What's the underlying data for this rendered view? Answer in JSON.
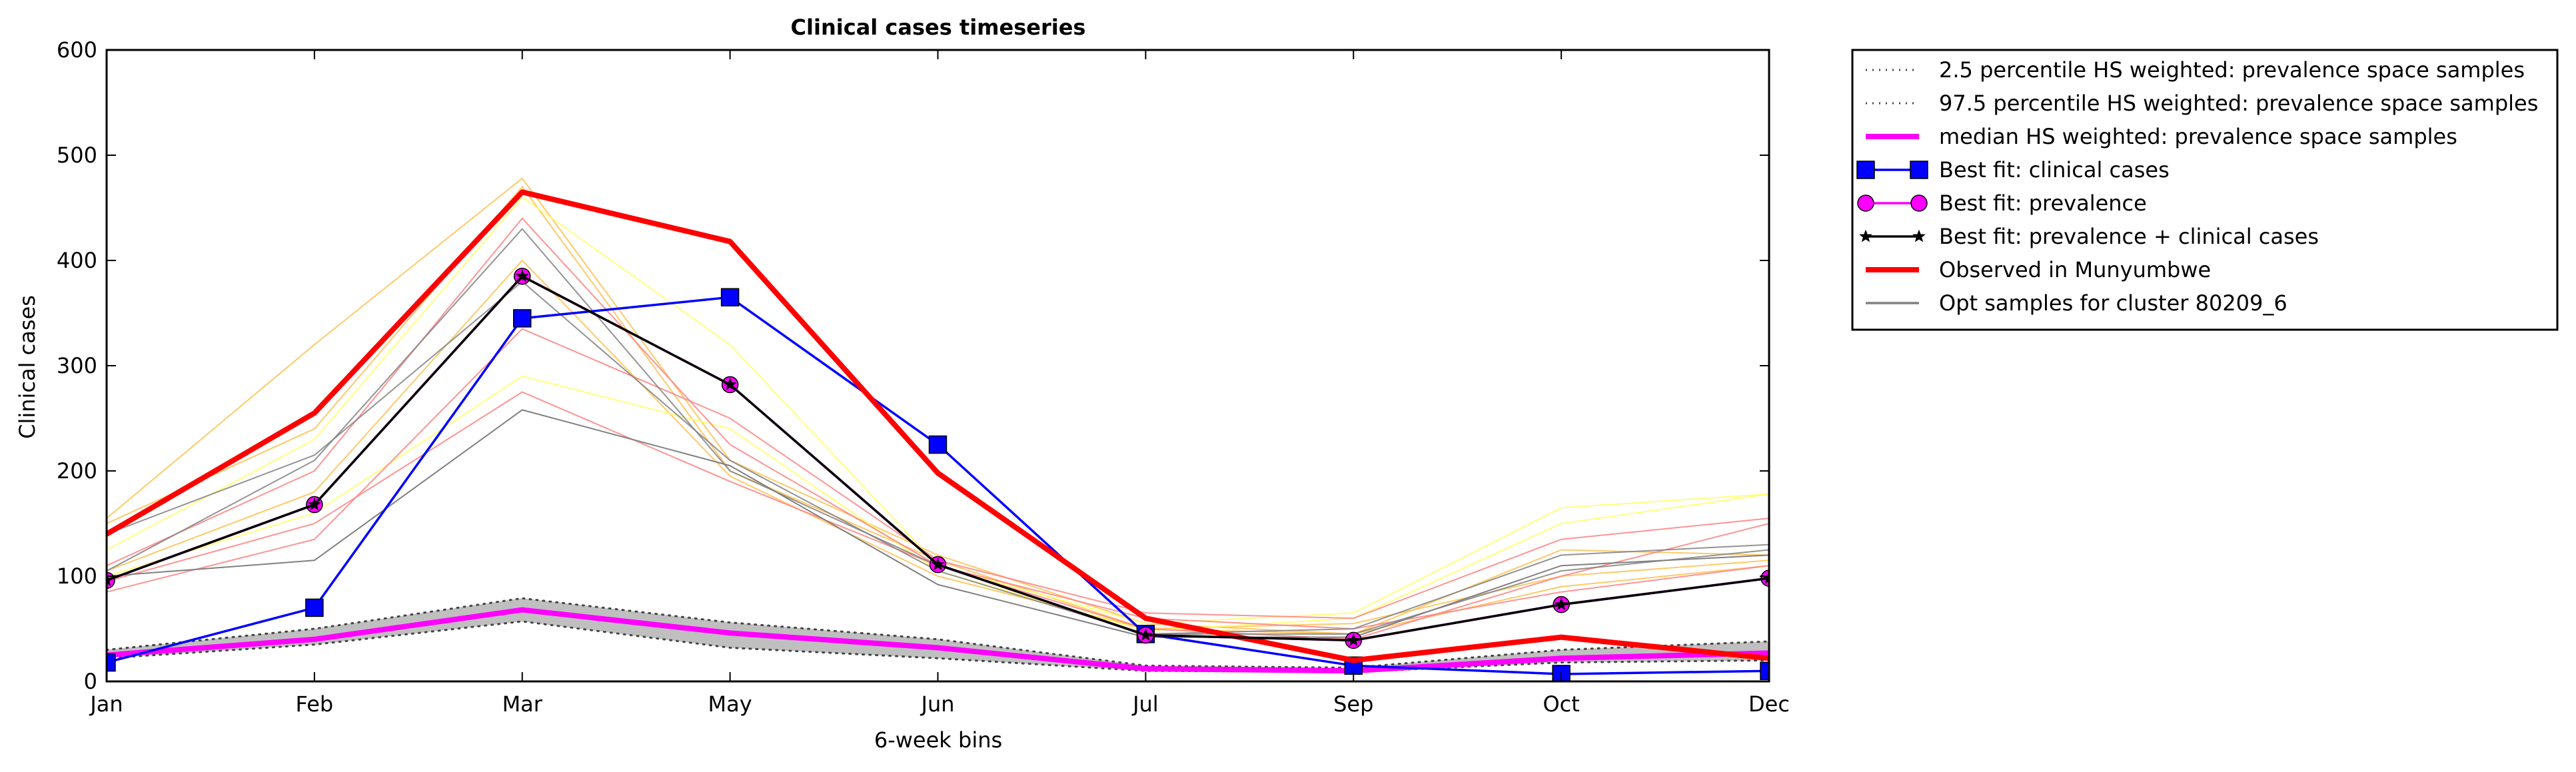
{
  "chart_data": {
    "type": "line",
    "title": "Clinical cases timeseries",
    "xlabel": "6-week bins",
    "ylabel": "Clinical cases",
    "categories": [
      "Jan",
      "Feb",
      "Mar",
      "May",
      "Jun",
      "Jul",
      "Sep",
      "Oct",
      "Dec"
    ],
    "ylim": [
      0,
      600
    ],
    "yticks": [
      "0",
      "100",
      "200",
      "300",
      "400",
      "500",
      "600"
    ],
    "grid": false,
    "legend_position": "outside-right",
    "band": {
      "lower": [
        22,
        35,
        57,
        32,
        22,
        10,
        9,
        18,
        20
      ],
      "upper": [
        30,
        50,
        79,
        56,
        40,
        15,
        13,
        30,
        38
      ],
      "fill": "#bfbfbf"
    },
    "series": [
      {
        "name": "2.5 percentile HS weighted: prevalence space samples",
        "style": "dotted",
        "color": "#444444",
        "marker": "none",
        "values": [
          22,
          35,
          57,
          32,
          22,
          10,
          9,
          18,
          20
        ]
      },
      {
        "name": "97.5 percentile HS weighted: prevalence space samples",
        "style": "dotted",
        "color": "#444444",
        "marker": "none",
        "values": [
          30,
          50,
          79,
          56,
          40,
          15,
          13,
          30,
          38
        ]
      },
      {
        "name": "median HS weighted: prevalence space samples",
        "style": "solid",
        "color": "#ff00ff",
        "marker": "none",
        "values": [
          25,
          40,
          68,
          46,
          32,
          12,
          10,
          22,
          27
        ]
      },
      {
        "name": "Best fit: clinical cases",
        "style": "solid",
        "color": "#0000ff",
        "marker": "square",
        "values": [
          18,
          70,
          345,
          365,
          225,
          45,
          15,
          7,
          10
        ]
      },
      {
        "name": "Best fit: prevalence",
        "style": "solid",
        "color": "#ff00ff",
        "marker": "circle",
        "values": [
          96,
          168,
          385,
          282,
          111,
          44,
          39,
          73,
          98
        ]
      },
      {
        "name": "Best fit: prevalence + clinical cases",
        "style": "solid",
        "color": "#000000",
        "marker": "star",
        "values": [
          96,
          168,
          385,
          282,
          111,
          44,
          39,
          73,
          98
        ]
      },
      {
        "name": "Observed in Munyumbwe",
        "style": "solid",
        "color": "#ff0000",
        "marker": "none",
        "values": [
          140,
          255,
          465,
          418,
          198,
          60,
          20,
          42,
          22
        ]
      },
      {
        "name": "Opt samples for cluster 80209_6",
        "style": "solid",
        "color": "#808080",
        "marker": "none",
        "values": [
          100,
          115,
          258,
          205,
          92,
          42,
          42,
          110,
          120
        ]
      }
    ],
    "sample_lines": [
      {
        "color": "#ffc04d",
        "values": [
          155,
          320,
          478,
          210,
          120,
          55,
          45,
          125,
          120
        ]
      },
      {
        "color": "#ffc04d",
        "values": [
          150,
          240,
          470,
          200,
          115,
          50,
          45,
          90,
          110
        ]
      },
      {
        "color": "#ffc04d",
        "values": [
          105,
          180,
          400,
          195,
          100,
          50,
          55,
          100,
          115
        ]
      },
      {
        "color": "#ffff66",
        "values": [
          125,
          230,
          460,
          320,
          110,
          55,
          65,
          165,
          178
        ]
      },
      {
        "color": "#ffff66",
        "values": [
          100,
          160,
          290,
          240,
          105,
          48,
          60,
          150,
          178
        ]
      },
      {
        "color": "#ff8080",
        "values": [
          85,
          135,
          335,
          250,
          115,
          65,
          60,
          135,
          155
        ]
      },
      {
        "color": "#ff8080",
        "values": [
          95,
          150,
          275,
          190,
          110,
          60,
          50,
          85,
          110
        ]
      },
      {
        "color": "#ff8080",
        "values": [
          110,
          200,
          440,
          225,
          110,
          50,
          40,
          100,
          150
        ]
      },
      {
        "color": "#808080",
        "values": [
          105,
          210,
          430,
          200,
          110,
          45,
          50,
          120,
          130
        ]
      },
      {
        "color": "#808080",
        "values": [
          140,
          215,
          380,
          210,
          105,
          45,
          45,
          105,
          125
        ]
      }
    ]
  }
}
